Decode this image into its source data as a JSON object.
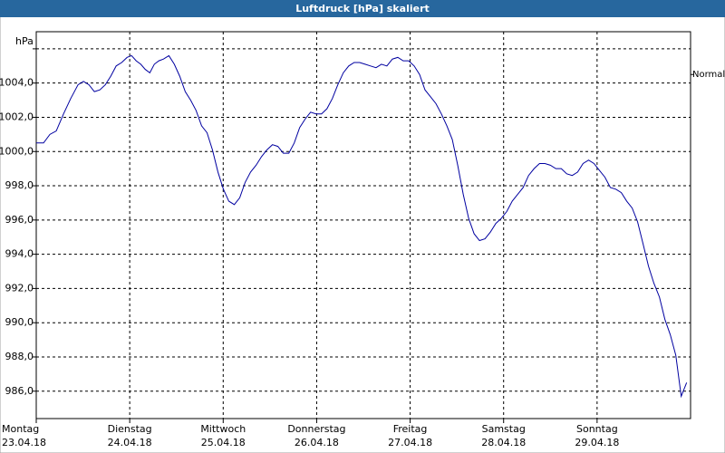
{
  "chart_data": {
    "type": "line",
    "title": "Luftdruck [hPa] skaliert",
    "y_unit": "hPa",
    "annotations": [
      {
        "text": "Normal",
        "value": 1004.5
      }
    ],
    "xlim": [
      0,
      7
    ],
    "ylim": [
      984.4,
      1007.0
    ],
    "grid": true,
    "xticks": [
      {
        "value": 0,
        "label": "Montag",
        "date": "23.04.18"
      },
      {
        "value": 1,
        "label": "Dienstag",
        "date": "24.04.18"
      },
      {
        "value": 2,
        "label": "Mittwoch",
        "date": "25.04.18"
      },
      {
        "value": 3,
        "label": "Donnerstag",
        "date": "26.04.18"
      },
      {
        "value": 4,
        "label": "Freitag",
        "date": "27.04.18"
      },
      {
        "value": 5,
        "label": "Samstag",
        "date": "28.04.18"
      },
      {
        "value": 6,
        "label": "Sonntag",
        "date": "29.04.18"
      }
    ],
    "yticks": [
      {
        "value": 986,
        "label": "986,0"
      },
      {
        "value": 988,
        "label": "988,0"
      },
      {
        "value": 990,
        "label": "990,0"
      },
      {
        "value": 992,
        "label": "992,0"
      },
      {
        "value": 994,
        "label": "994,0"
      },
      {
        "value": 996,
        "label": "996,0"
      },
      {
        "value": 998,
        "label": "998,0"
      },
      {
        "value": 1000,
        "label": "1000,0"
      },
      {
        "value": 1002,
        "label": "1002,0"
      },
      {
        "value": 1004,
        "label": "1004,0"
      },
      {
        "value": 1006,
        "label": null
      }
    ],
    "x": [
      0,
      0.078,
      0.146,
      0.214,
      0.292,
      0.369,
      0.447,
      0.505,
      0.564,
      0.622,
      0.68,
      0.739,
      0.797,
      0.855,
      0.914,
      0.972,
      1.02,
      1.069,
      1.118,
      1.166,
      1.215,
      1.263,
      1.312,
      1.361,
      1.419,
      1.477,
      1.535,
      1.594,
      1.652,
      1.71,
      1.769,
      1.827,
      1.885,
      1.944,
      2.002,
      2.06,
      2.119,
      2.177,
      2.235,
      2.293,
      2.352,
      2.41,
      2.468,
      2.527,
      2.585,
      2.643,
      2.702,
      2.76,
      2.818,
      2.877,
      2.935,
      2.993,
      3.052,
      3.11,
      3.168,
      3.226,
      3.285,
      3.343,
      3.401,
      3.46,
      3.518,
      3.576,
      3.635,
      3.693,
      3.751,
      3.81,
      3.868,
      3.926,
      3.984,
      4.043,
      4.101,
      4.159,
      4.218,
      4.276,
      4.334,
      4.393,
      4.451,
      4.509,
      4.568,
      4.626,
      4.684,
      4.742,
      4.801,
      4.859,
      4.917,
      4.976,
      5.034,
      5.092,
      5.151,
      5.209,
      5.267,
      5.326,
      5.384,
      5.442,
      5.5,
      5.559,
      5.617,
      5.675,
      5.734,
      5.792,
      5.85,
      5.909,
      5.967,
      6.025,
      6.084,
      6.142,
      6.2,
      6.259,
      6.317,
      6.375,
      6.433,
      6.492,
      6.55,
      6.608,
      6.667,
      6.725,
      6.783,
      6.842,
      6.9,
      6.958
    ],
    "series": [
      {
        "color": "#0000a0",
        "values": [
          1000.5,
          1000.5,
          1001.0,
          1001.2,
          1002.2,
          1003.1,
          1003.9,
          1004.1,
          1003.9,
          1003.5,
          1003.6,
          1003.9,
          1004.4,
          1005.0,
          1005.2,
          1005.5,
          1005.6,
          1005.3,
          1005.1,
          1004.8,
          1004.6,
          1005.1,
          1005.3,
          1005.4,
          1005.6,
          1005.1,
          1004.4,
          1003.5,
          1003.0,
          1002.4,
          1001.5,
          1001.1,
          1000.1,
          998.8,
          997.8,
          997.1,
          996.9,
          997.3,
          998.2,
          998.8,
          999.2,
          999.7,
          1000.1,
          1000.4,
          1000.3,
          999.9,
          999.9,
          1000.5,
          1001.4,
          1001.9,
          1002.3,
          1002.2,
          1002.2,
          1002.5,
          1003.1,
          1003.9,
          1004.6,
          1005.0,
          1005.2,
          1005.2,
          1005.1,
          1005.0,
          1004.9,
          1005.1,
          1005.0,
          1005.4,
          1005.5,
          1005.3,
          1005.3,
          1005.0,
          1004.5,
          1003.6,
          1003.2,
          1002.8,
          1002.2,
          1001.5,
          1000.7,
          999.2,
          997.5,
          996.1,
          995.2,
          994.8,
          994.9,
          995.3,
          995.8,
          996.1,
          996.5,
          997.1,
          997.5,
          997.9,
          998.6,
          999.0,
          999.3,
          999.3,
          999.2,
          999.0,
          999.0,
          998.7,
          998.6,
          998.8,
          999.3,
          999.5,
          999.3,
          998.9,
          998.5,
          997.9,
          997.8,
          997.6,
          997.1,
          996.7,
          995.9,
          994.6,
          993.3,
          992.3,
          991.5,
          990.2,
          989.3,
          988.1,
          985.7,
          986.5
        ]
      }
    ]
  }
}
